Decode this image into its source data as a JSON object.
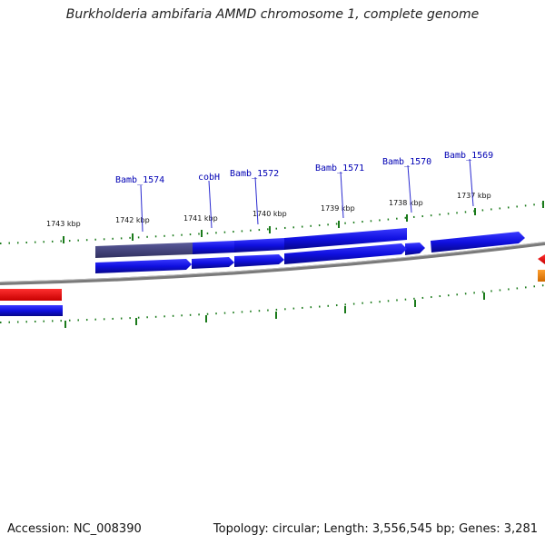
{
  "title": "Burkholderia ambifaria AMMD chromosome 1, complete genome",
  "footer": {
    "accession": "Accession: NC_008390",
    "stats": "Topology: circular; Length: 3,556,545 bp; Genes: 3,281"
  },
  "ticks": [
    {
      "label": "1743 kbp"
    },
    {
      "label": "1742 kbp"
    },
    {
      "label": "1741 kbp"
    },
    {
      "label": "1740 kbp"
    },
    {
      "label": "1739 kbp"
    },
    {
      "label": "1738 kbp"
    },
    {
      "label": "1737 kbp"
    }
  ],
  "genes": [
    {
      "label": "Bamb_1574"
    },
    {
      "label": "cobH"
    },
    {
      "label": "Bamb_1572"
    },
    {
      "label": "Bamb_1571"
    },
    {
      "label": "Bamb_1570"
    },
    {
      "label": "Bamb_1569"
    }
  ],
  "colors": {
    "gene": "#1010e0",
    "highlight": "#4a4a8c",
    "rna": "#ee1010",
    "orange": "#f08c1a",
    "tick": "#1a7a1a",
    "backbone": "#808080",
    "label": "#0000b4"
  }
}
